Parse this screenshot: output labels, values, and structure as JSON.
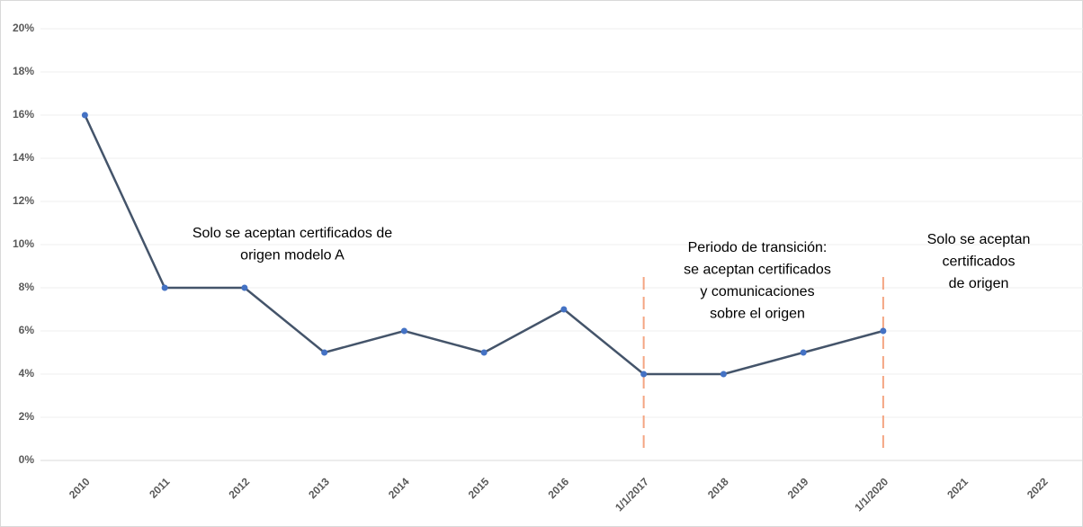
{
  "chart_data": {
    "type": "line",
    "categories": [
      "2010",
      "2011",
      "2012",
      "2013",
      "2014",
      "2015",
      "2016",
      "1/1/2017",
      "2018",
      "2019",
      "1/1/2020",
      "2021",
      "2022"
    ],
    "series": [
      {
        "color": "#44546a",
        "marker_color": "#4472c4",
        "values": [
          16,
          8,
          8,
          5,
          6,
          5,
          7,
          4,
          4,
          5,
          6,
          null,
          null
        ]
      }
    ],
    "ylim": [
      0,
      20
    ],
    "yticks": [
      {
        "value": 0,
        "label": "0%"
      },
      {
        "value": 2,
        "label": "2%"
      },
      {
        "value": 4,
        "label": "4%"
      },
      {
        "value": 6,
        "label": "6%"
      },
      {
        "value": 8,
        "label": "8%"
      },
      {
        "value": 10,
        "label": "10%"
      },
      {
        "value": 12,
        "label": "12%"
      },
      {
        "value": 14,
        "label": "14%"
      },
      {
        "value": 16,
        "label": "16%"
      },
      {
        "value": 18,
        "label": "18%"
      },
      {
        "value": 20,
        "label": "20%"
      }
    ],
    "grid": true,
    "reference_lines": [
      {
        "at": "1/1/2017",
        "color": "#f4a582"
      },
      {
        "at": "1/1/2020",
        "color": "#f4a582"
      }
    ],
    "annotations": [
      {
        "lines": [
          "Solo se aceptan certificados de",
          "origen modelo A"
        ]
      },
      {
        "lines": [
          "Periodo de transición:",
          "se aceptan certificados",
          "y comunicaciones",
          "sobre el origen"
        ]
      },
      {
        "lines": [
          "Solo se aceptan",
          "certificados",
          "de origen"
        ]
      }
    ]
  }
}
